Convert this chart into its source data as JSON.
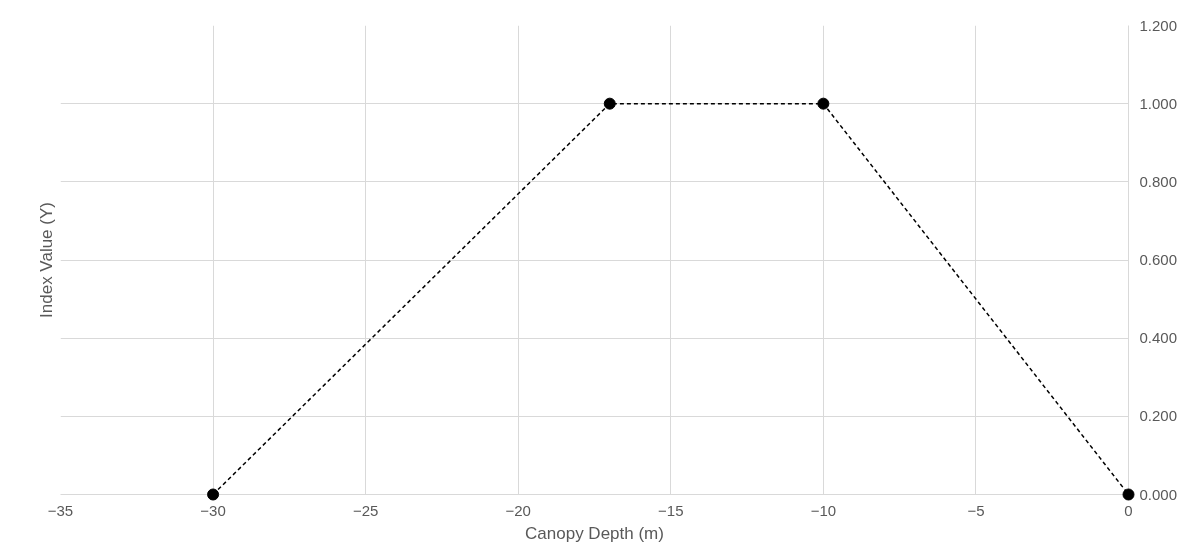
{
  "chart_data": {
    "type": "line",
    "xlabel": "Canopy Depth (m)",
    "ylabel": "Index Value (Y)",
    "x": [
      -30,
      -17,
      -10,
      0
    ],
    "series": [
      {
        "color": "#000000",
        "values": [
          0,
          1,
          1,
          0
        ]
      }
    ],
    "xlim": [
      -35,
      0
    ],
    "xticks": [
      -35,
      -30,
      -25,
      -20,
      -15,
      -10,
      -5,
      0
    ],
    "ylim": [
      0,
      1.2
    ],
    "yticks": [
      {
        "value": 0,
        "label": "0.000"
      },
      {
        "value": 0.2,
        "label": "0.200"
      },
      {
        "value": 0.4,
        "label": "0.400"
      },
      {
        "value": 0.6,
        "label": "0.600"
      },
      {
        "value": 0.8,
        "label": "0.800"
      },
      {
        "value": 1,
        "label": "1.000"
      },
      {
        "value": 1.2,
        "label": "1.200"
      }
    ],
    "grid": true,
    "marker": "circle",
    "line_style": "dashed"
  }
}
